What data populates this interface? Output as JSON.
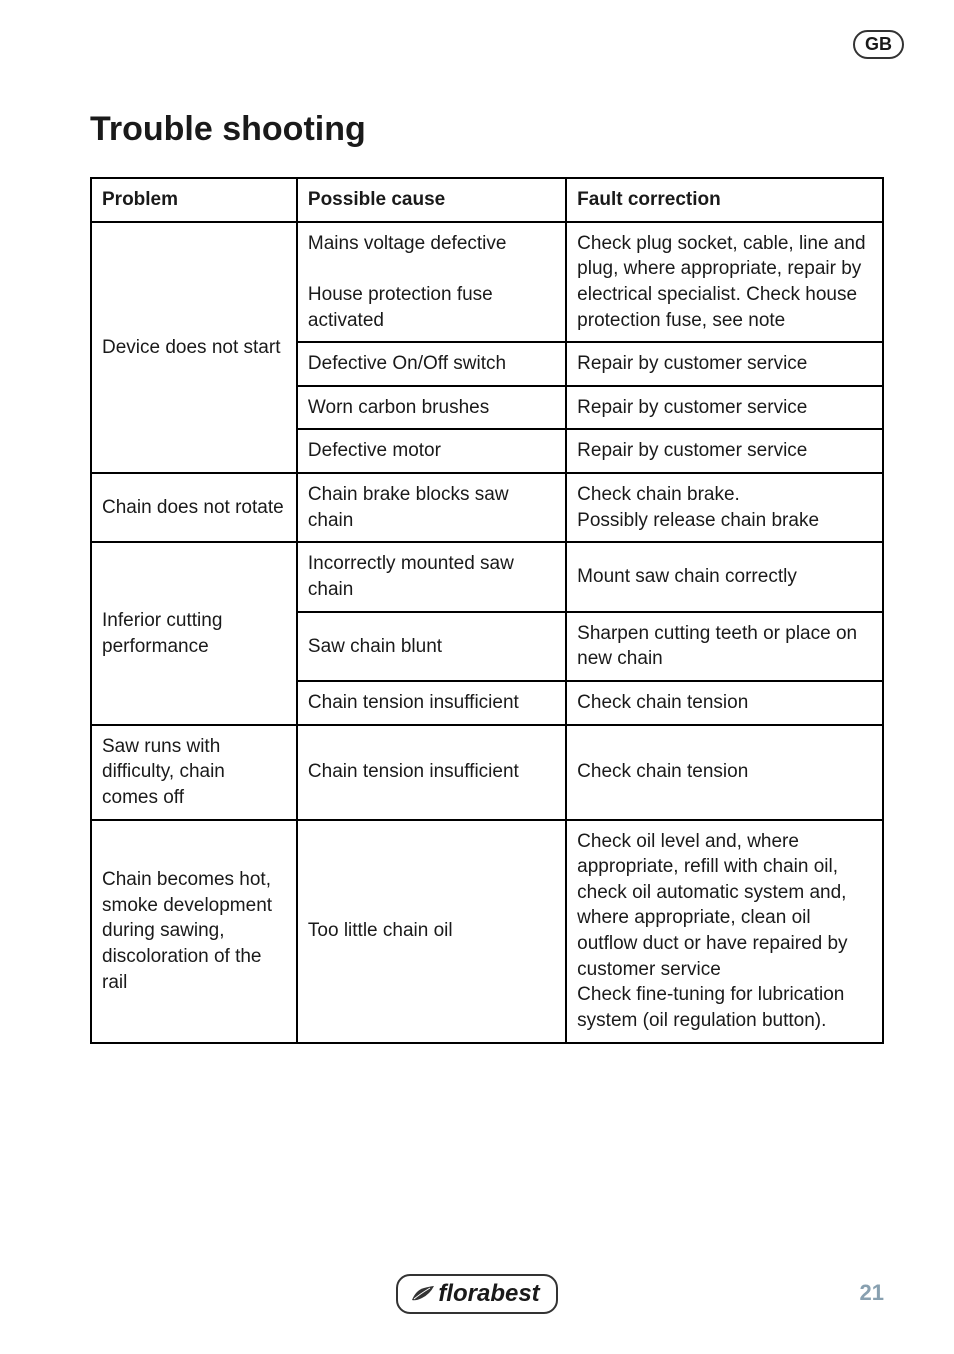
{
  "badge": {
    "text": "GB"
  },
  "heading": "Trouble shooting",
  "table": {
    "headers": [
      "Problem",
      "Possible cause",
      "Fault correction"
    ],
    "rows": [
      {
        "problem": "Device does not start",
        "problem_rowspan": 4,
        "cells": [
          [
            "Mains voltage defective\n\nHouse protection fuse activated",
            "Check plug socket, cable, line and plug, where appropriate, repair by electrical specialist. Check house protection fuse, see note"
          ],
          [
            "Defective On/Off switch",
            "Repair by customer service"
          ],
          [
            "Worn carbon brushes",
            "Repair by customer service"
          ],
          [
            "Defective motor",
            "Repair by customer service"
          ]
        ]
      },
      {
        "problem": "Chain does not rotate",
        "problem_rowspan": 1,
        "cells": [
          [
            "Chain brake blocks saw chain",
            "Check chain brake.\nPossibly release chain brake"
          ]
        ]
      },
      {
        "problem": "Inferior cutting performance",
        "problem_rowspan": 3,
        "cells": [
          [
            "Incorrectly mounted saw chain",
            "Mount saw chain correctly"
          ],
          [
            "Saw chain blunt",
            "Sharpen cutting teeth or place on new chain"
          ],
          [
            "Chain tension insufficient",
            "Check chain tension"
          ]
        ]
      },
      {
        "problem": "Saw runs with difficulty, chain comes off",
        "problem_rowspan": 1,
        "cells": [
          [
            "Chain tension insufficient",
            "Check chain tension"
          ]
        ]
      },
      {
        "problem": "Chain becomes hot, smoke development during sawing, discoloration of the rail",
        "problem_rowspan": 1,
        "cells": [
          [
            "Too little chain oil",
            "Check oil level and, where appropriate, refill with chain oil, check oil automatic system and, where appropriate, clean oil outflow duct or have repaired by customer service\nCheck fine-tuning for lubrication system (oil regulation button)."
          ]
        ]
      }
    ]
  },
  "footer": {
    "logo_text": "florabest",
    "page_number": "21"
  },
  "style": {
    "text_color": "#1a1a1a",
    "page_num_color": "#88a0b0",
    "border_color": "#000000",
    "badge_border": "#333333"
  }
}
